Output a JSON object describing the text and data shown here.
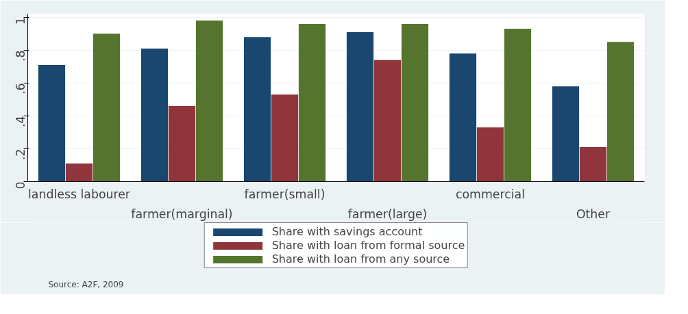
{
  "chart_data": {
    "type": "bar",
    "categories": [
      "landless labourer",
      "farmer(marginal)",
      "farmer(small)",
      "farmer(large)",
      "commercial",
      "Other"
    ],
    "series": [
      {
        "name": "Share with savings account",
        "color": "#1a476f",
        "values": [
          0.71,
          0.81,
          0.88,
          0.91,
          0.78,
          0.58
        ]
      },
      {
        "name": "Share with loan from formal source",
        "color": "#90353b",
        "values": [
          0.11,
          0.46,
          0.53,
          0.74,
          0.33,
          0.21
        ]
      },
      {
        "name": "Share with loan from any source",
        "color": "#55752f",
        "values": [
          0.9,
          0.98,
          0.96,
          0.96,
          0.93,
          0.85
        ]
      }
    ],
    "ylim": [
      0,
      1.02
    ],
    "yticks": [
      {
        "value": 0,
        "label": "0"
      },
      {
        "value": 0.2,
        "label": ".2"
      },
      {
        "value": 0.4,
        "label": ".4"
      },
      {
        "value": 0.6,
        "label": ".6"
      },
      {
        "value": 0.8,
        "label": ".8"
      },
      {
        "value": 1,
        "label": "1"
      }
    ],
    "grid": "y",
    "legend": "bottom",
    "annotations": [
      "Source: A2F, 2009"
    ]
  }
}
